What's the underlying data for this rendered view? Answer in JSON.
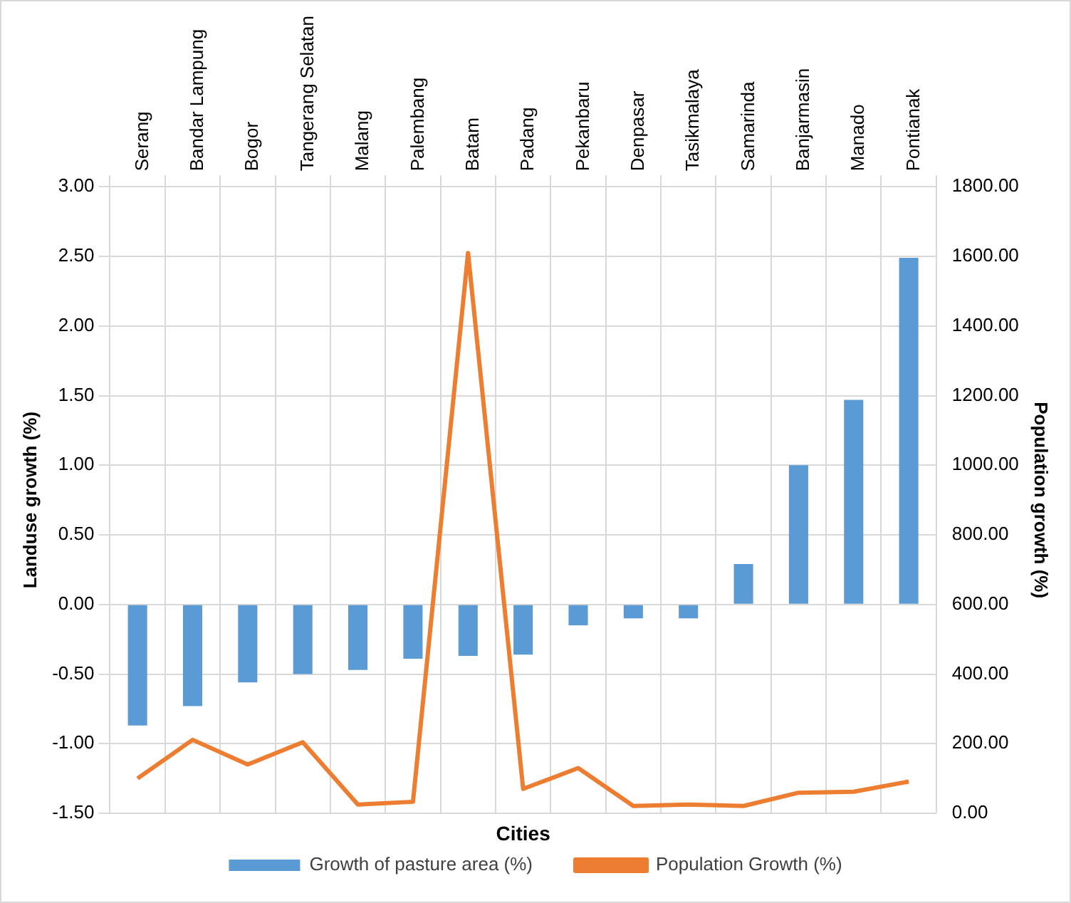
{
  "chart_data": {
    "type": "bar",
    "xlabel": "Cities",
    "ylabel": "Landuse growth (%)",
    "y2label": "Population growth (%)",
    "categories": [
      "Serang",
      "Bandar Lampung",
      "Bogor",
      "Tangerang Selatan",
      "Malang",
      "Palembang",
      "Batam",
      "Padang",
      "Pekanbaru",
      "Denpasar",
      "Tasikmalaya",
      "Samarinda",
      "Banjarmasin",
      "Manado",
      "Pontianak"
    ],
    "series": [
      {
        "name": "Growth of pasture area (%)",
        "color": "#5b9bd5",
        "values": [
          -0.87,
          -0.73,
          -0.56,
          -0.5,
          -0.47,
          -0.39,
          -0.37,
          -0.36,
          -0.15,
          -0.1,
          -0.1,
          0.29,
          1.0,
          1.47,
          2.49
        ]
      },
      {
        "name": "Population Growth (%)",
        "type": "line",
        "axis": "y2",
        "color": "#ed7d31",
        "marker": "none",
        "values": [
          100,
          211,
          140,
          204,
          25,
          33,
          1610,
          70,
          130,
          21,
          25,
          21,
          59,
          62,
          91
        ]
      }
    ],
    "ylim": [
      -1.5,
      3
    ],
    "yticks": [
      {
        "value": -1.5,
        "label": "-1.50"
      },
      {
        "value": -1,
        "label": "-1.00"
      },
      {
        "value": -0.5,
        "label": "-0.50"
      },
      {
        "value": 0,
        "label": "0.00"
      },
      {
        "value": 0.5,
        "label": "0.50"
      },
      {
        "value": 1,
        "label": "1.00"
      },
      {
        "value": 1.5,
        "label": "1.50"
      },
      {
        "value": 2,
        "label": "2.00"
      },
      {
        "value": 2.5,
        "label": "2.50"
      },
      {
        "value": 3,
        "label": "3.00"
      }
    ],
    "y2lim": [
      0,
      1800
    ],
    "y2ticks": [
      {
        "value": 0,
        "label": "0.00"
      },
      {
        "value": 200,
        "label": "200.00"
      },
      {
        "value": 400,
        "label": "400.00"
      },
      {
        "value": 600,
        "label": "600.00"
      },
      {
        "value": 800,
        "label": "800.00"
      },
      {
        "value": 1000,
        "label": "1000.00"
      },
      {
        "value": 1200,
        "label": "1200.00"
      },
      {
        "value": 1400,
        "label": "1400.00"
      },
      {
        "value": 1600,
        "label": "1600.00"
      },
      {
        "value": 1800,
        "label": "1800.00"
      }
    ],
    "grid": true,
    "legend": "bottom"
  }
}
